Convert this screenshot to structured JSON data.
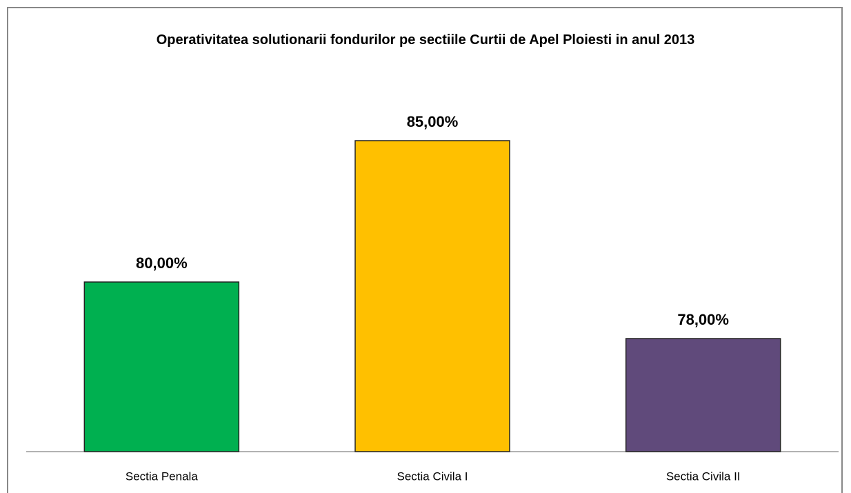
{
  "chart_data": {
    "type": "bar",
    "title": "Operativitatea solutionarii fondurilor pe sectiile Curtii de Apel Ploiesti in anul 2013",
    "categories": [
      "Sectia Penala",
      "Sectia Civila I",
      "Sectia Civila II"
    ],
    "values": [
      80,
      85,
      78
    ],
    "value_labels": [
      "80,00%",
      "85,00%",
      "78,00%"
    ],
    "colors": [
      "#00b050",
      "#ffc000",
      "#604a7b"
    ],
    "ylim": [
      74,
      87
    ]
  }
}
